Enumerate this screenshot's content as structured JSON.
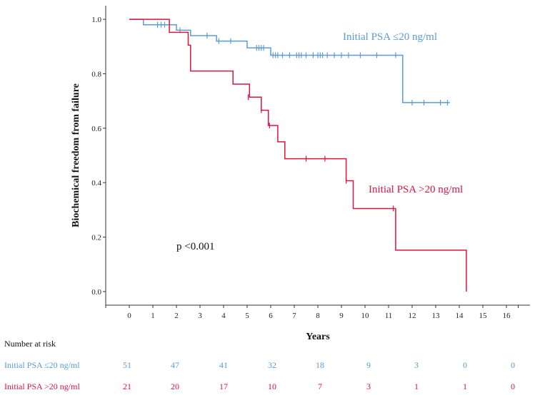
{
  "chart_data": {
    "type": "line",
    "subtype": "kaplan-meier",
    "xlabel": "Years",
    "ylabel": "Biochemical freedom from failure",
    "xlim": [
      -1,
      17
    ],
    "ylim": [
      -0.05,
      1.05
    ],
    "xticks": [
      0,
      1,
      2,
      3,
      4,
      5,
      6,
      7,
      8,
      9,
      10,
      11,
      12,
      13,
      14,
      15,
      16
    ],
    "yticks": [
      0.0,
      0.2,
      0.4,
      0.6,
      0.8,
      1.0
    ],
    "ytick_labels": [
      "0.0",
      "0.2",
      "0.4",
      "0.6",
      "0.8",
      "1.0"
    ],
    "annotation": "p <0.001",
    "series": [
      {
        "name": "Initial PSA ≤20 ng/ml",
        "color": "#5b9bd5",
        "steps": [
          [
            0,
            1.0
          ],
          [
            0.6,
            0.98
          ],
          [
            2.0,
            0.96
          ],
          [
            2.6,
            0.94
          ],
          [
            3.7,
            0.92
          ],
          [
            5.0,
            0.895
          ],
          [
            6.0,
            0.868
          ],
          [
            11.6,
            0.694
          ],
          [
            13.6,
            0.694
          ]
        ],
        "censored": [
          [
            1.2,
            0.98
          ],
          [
            1.35,
            0.98
          ],
          [
            1.5,
            0.98
          ],
          [
            2.15,
            0.96
          ],
          [
            3.3,
            0.94
          ],
          [
            3.8,
            0.92
          ],
          [
            4.3,
            0.92
          ],
          [
            5.4,
            0.895
          ],
          [
            5.5,
            0.895
          ],
          [
            5.6,
            0.895
          ],
          [
            5.7,
            0.895
          ],
          [
            6.1,
            0.868
          ],
          [
            6.2,
            0.868
          ],
          [
            6.3,
            0.868
          ],
          [
            6.5,
            0.868
          ],
          [
            6.8,
            0.868
          ],
          [
            7.1,
            0.868
          ],
          [
            7.2,
            0.868
          ],
          [
            7.3,
            0.868
          ],
          [
            7.5,
            0.868
          ],
          [
            7.8,
            0.868
          ],
          [
            8.0,
            0.868
          ],
          [
            8.1,
            0.868
          ],
          [
            8.2,
            0.868
          ],
          [
            8.4,
            0.868
          ],
          [
            8.7,
            0.868
          ],
          [
            9.0,
            0.868
          ],
          [
            9.3,
            0.868
          ],
          [
            9.8,
            0.868
          ],
          [
            10.5,
            0.868
          ],
          [
            11.3,
            0.868
          ],
          [
            12.0,
            0.694
          ],
          [
            12.5,
            0.694
          ],
          [
            13.2,
            0.694
          ],
          [
            13.5,
            0.694
          ]
        ]
      },
      {
        "name": "Initial PSA >20 ng/ml",
        "color": "#dc143c",
        "steps": [
          [
            0,
            1.0
          ],
          [
            1.7,
            0.952
          ],
          [
            2.5,
            0.905
          ],
          [
            2.6,
            0.81
          ],
          [
            4.4,
            0.762
          ],
          [
            5.1,
            0.714
          ],
          [
            5.6,
            0.666
          ],
          [
            5.9,
            0.61
          ],
          [
            6.3,
            0.55
          ],
          [
            6.6,
            0.488
          ],
          [
            9.2,
            0.407
          ],
          [
            9.5,
            0.305
          ],
          [
            11.3,
            0.152
          ],
          [
            14.3,
            0.0
          ]
        ],
        "censored": [
          [
            5.05,
            0.714
          ],
          [
            5.6,
            0.666
          ],
          [
            5.95,
            0.61
          ],
          [
            7.5,
            0.488
          ],
          [
            8.3,
            0.488
          ],
          [
            9.2,
            0.407
          ],
          [
            11.2,
            0.305
          ]
        ]
      }
    ],
    "series_labels": [
      {
        "text": "Initial PSA ≤20 ng/ml",
        "color": "#5b9bd5"
      },
      {
        "text": "Initial PSA >20 ng/ml",
        "color": "#dc143c"
      }
    ],
    "number_at_risk": {
      "title": "Number at risk",
      "times": [
        0,
        2,
        4,
        6,
        8,
        10,
        12,
        14,
        16
      ],
      "rows": [
        {
          "label": "Initial PSA ≤20 ng/ml",
          "color": "#5b9bd5",
          "values": [
            "51",
            "47",
            "41",
            "32",
            "18",
            "9",
            "3",
            "0",
            "0"
          ]
        },
        {
          "label": "Initial PSA >20 ng/ml",
          "color": "#dc143c",
          "values": [
            "21",
            "20",
            "17",
            "10",
            "7",
            "3",
            "1",
            "1",
            "0"
          ]
        }
      ]
    }
  }
}
